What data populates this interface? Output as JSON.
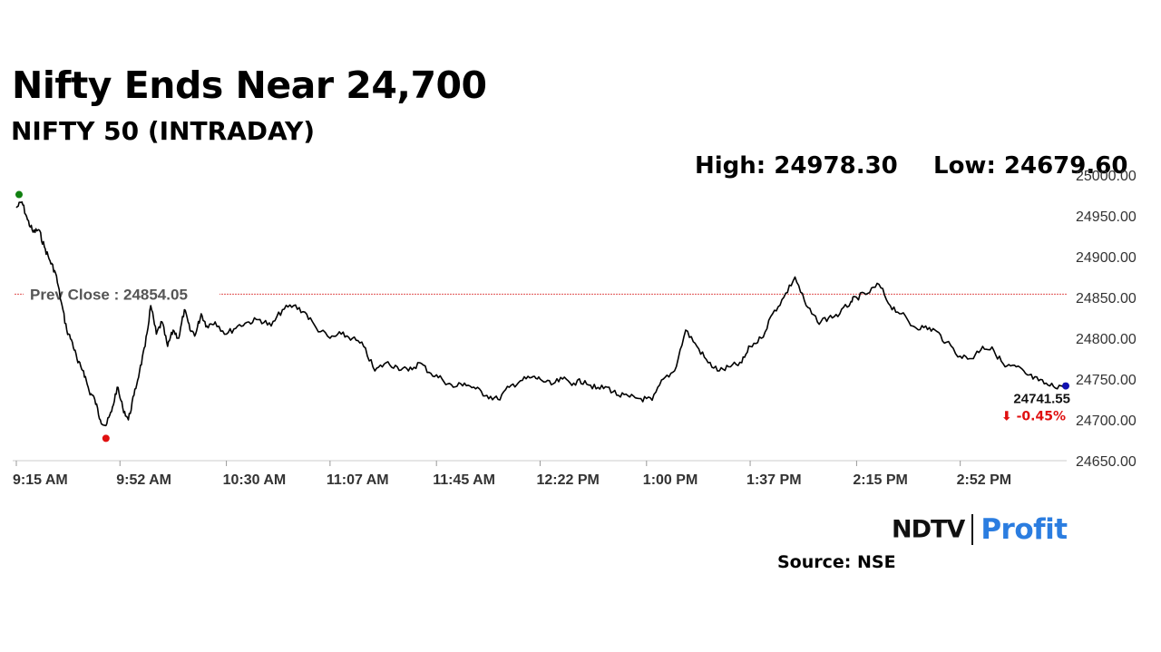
{
  "header": {
    "title": "Nifty Ends Near 24,700",
    "subtitle": "NIFTY 50 (INTRADAY)",
    "high_label": "High: 24978.30",
    "low_label": "Low: 24679.60"
  },
  "footer": {
    "logo_text_ndtv": "NDTV",
    "logo_text_profit": "Profit",
    "source": "Source: NSE"
  },
  "colors": {
    "line": "#000000",
    "prev_close": "#e05050",
    "open_marker": "#108010",
    "low_marker": "#e01010",
    "last_marker": "#1010b0",
    "change_negative": "#e01010",
    "axis_text": "#333333",
    "logo_blue": "#2b7de0"
  },
  "chart_data": {
    "type": "line",
    "title": "NIFTY 50 (INTRADAY)",
    "xlabel": "",
    "ylabel": "",
    "ylim": [
      24650,
      25000
    ],
    "y_ticks": [
      24650,
      24700,
      24750,
      24800,
      24850,
      24900,
      24950,
      25000
    ],
    "y_tick_labels": [
      "24650.00",
      "24700.00",
      "24750.00",
      "24800.00",
      "24850.00",
      "24900.00",
      "24950.00",
      "25000.00"
    ],
    "x_ticks": [
      "9:15 AM",
      "9:52 AM",
      "10:30 AM",
      "11:07 AM",
      "11:45 AM",
      "12:22 PM",
      "1:00 PM",
      "1:37 PM",
      "2:15 PM",
      "2:52 PM"
    ],
    "x_range": [
      "9:15 AM",
      "3:30 PM"
    ],
    "grid": false,
    "prev_close": {
      "label": "Prev Close : 24854.05",
      "value": 24854.05
    },
    "high": 24978.3,
    "low": 24679.6,
    "last": {
      "value_label": "24741.55",
      "change_label": "⬇ -0.45%",
      "value": 24741.55
    },
    "series": [
      {
        "x": [
          "9:15 AM",
          "9:17 AM",
          "9:19 AM",
          "9:21 AM",
          "9:23 AM",
          "9:25 AM",
          "9:27 AM",
          "9:29 AM",
          "9:31 AM",
          "9:33 AM",
          "9:35 AM",
          "9:37 AM",
          "9:39 AM",
          "9:41 AM",
          "9:43 AM",
          "9:45 AM",
          "9:47 AM",
          "9:49 AM",
          "9:51 AM",
          "9:53 AM",
          "9:55 AM",
          "9:57 AM",
          "9:59 AM",
          "10:01 AM",
          "10:03 AM",
          "10:05 AM",
          "10:07 AM",
          "10:09 AM",
          "10:11 AM",
          "10:13 AM",
          "10:15 AM",
          "10:17 AM",
          "10:19 AM",
          "10:21 AM",
          "10:23 AM",
          "10:26 AM",
          "10:30 AM",
          "10:34 AM",
          "10:38 AM",
          "10:42 AM",
          "10:46 AM",
          "10:50 AM",
          "10:54 AM",
          "10:58 AM",
          "11:02 AM",
          "11:07 AM",
          "11:11 AM",
          "11:15 AM",
          "11:19 AM",
          "11:23 AM",
          "11:27 AM",
          "11:31 AM",
          "11:35 AM",
          "11:39 AM",
          "11:43 AM",
          "11:47 AM",
          "11:51 AM",
          "11:55 AM",
          "11:59 AM",
          "12:03 PM",
          "12:07 PM",
          "12:11 PM",
          "12:15 PM",
          "12:19 PM",
          "12:22 PM",
          "12:26 PM",
          "12:30 PM",
          "12:34 PM",
          "12:38 PM",
          "12:42 PM",
          "12:46 PM",
          "12:50 PM",
          "12:54 PM",
          "12:58 PM",
          "1:02 PM",
          "1:06 PM",
          "1:10 PM",
          "1:14 PM",
          "1:18 PM",
          "1:22 PM",
          "1:26 PM",
          "1:30 PM",
          "1:34 PM",
          "1:37 PM",
          "1:41 PM",
          "1:45 PM",
          "1:49 PM",
          "1:53 PM",
          "1:57 PM",
          "2:01 PM",
          "2:05 PM",
          "2:09 PM",
          "2:13 PM",
          "2:15 PM",
          "2:19 PM",
          "2:23 PM",
          "2:27 PM",
          "2:31 PM",
          "2:35 PM",
          "2:39 PM",
          "2:43 PM",
          "2:47 PM",
          "2:52 PM",
          "2:56 PM",
          "3:00 PM",
          "3:04 PM",
          "3:08 PM",
          "3:12 PM",
          "3:16 PM",
          "3:20 PM",
          "3:24 PM",
          "3:28 PM",
          "3:30 PM"
        ],
        "values": [
          24960,
          24967,
          24945,
          24930,
          24933,
          24912,
          24895,
          24880,
          24845,
          24810,
          24795,
          24770,
          24760,
          24735,
          24725,
          24700,
          24693,
          24710,
          24740,
          24715,
          24700,
          24730,
          24760,
          24790,
          24840,
          24805,
          24820,
          24790,
          24810,
          24800,
          24835,
          24810,
          24805,
          24830,
          24815,
          24820,
          24805,
          24815,
          24820,
          24823,
          24815,
          24835,
          24840,
          24832,
          24813,
          24800,
          24805,
          24800,
          24790,
          24760,
          24770,
          24765,
          24760,
          24770,
          24757,
          24750,
          24740,
          24745,
          24738,
          24730,
          24725,
          24740,
          24748,
          24752,
          24750,
          24743,
          24750,
          24745,
          24748,
          24738,
          24740,
          24730,
          24728,
          24726,
          24724,
          24750,
          24760,
          24810,
          24790,
          24770,
          24760,
          24765,
          24770,
          24790,
          24800,
          24830,
          24850,
          24875,
          24840,
          24820,
          24825,
          24830,
          24845,
          24850,
          24855,
          24866,
          24840,
          24830,
          24815,
          24813,
          24810,
          24795,
          24778,
          24775,
          24790,
          24785,
          24765,
          24765,
          24755,
          24748,
          24741.55,
          24741.55,
          24741.55
        ]
      }
    ]
  }
}
